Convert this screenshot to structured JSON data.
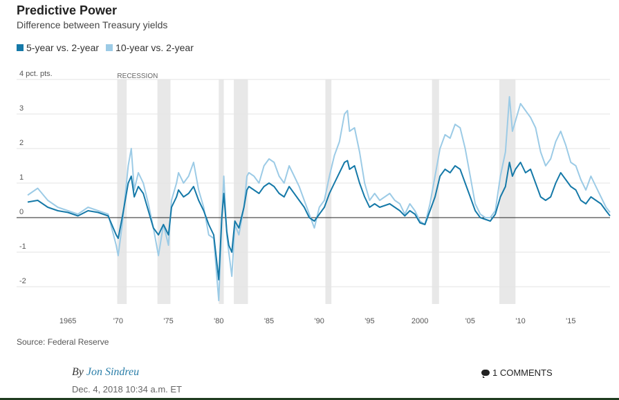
{
  "header": {
    "title": "Predictive Power",
    "subtitle": "Difference between Treasury yields"
  },
  "legend": [
    {
      "label": "5-year vs. 2-year",
      "color": "#1579a8"
    },
    {
      "label": "10-year vs. 2-year",
      "color": "#9ccbe6"
    }
  ],
  "footer": {
    "source": "Source: Federal Reserve",
    "by_prefix": "By",
    "author": "Jon Sindreu",
    "date": "Dec. 4, 2018 10:34 a.m. ET",
    "comments": "1 COMMENTS"
  },
  "chart_data": {
    "type": "line",
    "title": "Predictive Power",
    "subtitle": "Difference between Treasury yields",
    "ylabel": "pct. pts.",
    "xlim": [
      1961,
      2018.9
    ],
    "ylim": [
      -2.5,
      4
    ],
    "y_ticks": [
      {
        "value": 4,
        "label": "4 pct. pts."
      },
      {
        "value": 3,
        "label": "3"
      },
      {
        "value": 2,
        "label": "2"
      },
      {
        "value": 1,
        "label": "1"
      },
      {
        "value": 0,
        "label": "0"
      },
      {
        "value": -1,
        "label": "-1"
      },
      {
        "value": -2,
        "label": "-2"
      }
    ],
    "x_ticks": [
      {
        "value": 1965,
        "label": "1965"
      },
      {
        "value": 1970,
        "label": "'70"
      },
      {
        "value": 1975,
        "label": "'75"
      },
      {
        "value": 1980,
        "label": "'80"
      },
      {
        "value": 1985,
        "label": "'85"
      },
      {
        "value": 1990,
        "label": "'90"
      },
      {
        "value": 1995,
        "label": "'95"
      },
      {
        "value": 2000,
        "label": "2000"
      },
      {
        "value": 2005,
        "label": "'05"
      },
      {
        "value": 2010,
        "label": "'10"
      },
      {
        "value": 2015,
        "label": "'15"
      }
    ],
    "recession_label": "RECESSION",
    "recessions": [
      [
        1969.9,
        1970.85
      ],
      [
        1973.9,
        1975.2
      ],
      [
        1980.0,
        1980.5
      ],
      [
        1981.5,
        1982.9
      ],
      [
        1990.6,
        1991.2
      ],
      [
        2001.2,
        2001.9
      ],
      [
        2007.9,
        2009.5
      ]
    ],
    "series": [
      {
        "name": "10-year vs. 2-year",
        "color": "#9ccbe6",
        "points": [
          [
            1961.0,
            0.65
          ],
          [
            1962.0,
            0.85
          ],
          [
            1963.0,
            0.5
          ],
          [
            1964.0,
            0.3
          ],
          [
            1965.0,
            0.2
          ],
          [
            1966.0,
            0.1
          ],
          [
            1967.0,
            0.3
          ],
          [
            1968.0,
            0.2
          ],
          [
            1969.0,
            0.1
          ],
          [
            1969.8,
            -0.8
          ],
          [
            1970.0,
            -1.1
          ],
          [
            1970.4,
            -0.2
          ],
          [
            1971.0,
            1.5
          ],
          [
            1971.3,
            2.0
          ],
          [
            1971.6,
            0.8
          ],
          [
            1972.0,
            1.3
          ],
          [
            1972.5,
            1.0
          ],
          [
            1973.0,
            0.4
          ],
          [
            1973.5,
            -0.3
          ],
          [
            1974.0,
            -1.1
          ],
          [
            1974.5,
            -0.2
          ],
          [
            1975.0,
            -0.8
          ],
          [
            1975.3,
            0.5
          ],
          [
            1975.8,
            1.0
          ],
          [
            1976.0,
            1.3
          ],
          [
            1976.5,
            1.0
          ],
          [
            1977.0,
            1.2
          ],
          [
            1977.5,
            1.6
          ],
          [
            1978.0,
            0.8
          ],
          [
            1978.5,
            0.3
          ],
          [
            1979.0,
            -0.5
          ],
          [
            1979.5,
            -0.6
          ],
          [
            1980.0,
            -2.4
          ],
          [
            1980.3,
            0.0
          ],
          [
            1980.5,
            1.2
          ],
          [
            1980.8,
            -0.5
          ],
          [
            1981.0,
            -1.0
          ],
          [
            1981.3,
            -1.7
          ],
          [
            1981.6,
            -0.2
          ],
          [
            1982.0,
            -0.5
          ],
          [
            1982.5,
            0.3
          ],
          [
            1982.8,
            1.2
          ],
          [
            1983.0,
            1.3
          ],
          [
            1983.5,
            1.2
          ],
          [
            1984.0,
            1.0
          ],
          [
            1984.5,
            1.5
          ],
          [
            1985.0,
            1.7
          ],
          [
            1985.5,
            1.6
          ],
          [
            1986.0,
            1.2
          ],
          [
            1986.5,
            1.0
          ],
          [
            1987.0,
            1.5
          ],
          [
            1987.5,
            1.2
          ],
          [
            1988.0,
            0.9
          ],
          [
            1988.5,
            0.5
          ],
          [
            1989.0,
            0.1
          ],
          [
            1989.5,
            -0.3
          ],
          [
            1990.0,
            0.3
          ],
          [
            1990.5,
            0.5
          ],
          [
            1991.0,
            1.2
          ],
          [
            1991.5,
            1.8
          ],
          [
            1992.0,
            2.2
          ],
          [
            1992.5,
            3.0
          ],
          [
            1992.8,
            3.1
          ],
          [
            1993.0,
            2.5
          ],
          [
            1993.5,
            2.6
          ],
          [
            1994.0,
            1.9
          ],
          [
            1994.5,
            1.0
          ],
          [
            1995.0,
            0.5
          ],
          [
            1995.5,
            0.7
          ],
          [
            1996.0,
            0.5
          ],
          [
            1996.5,
            0.6
          ],
          [
            1997.0,
            0.7
          ],
          [
            1997.5,
            0.5
          ],
          [
            1998.0,
            0.4
          ],
          [
            1998.5,
            0.1
          ],
          [
            1999.0,
            0.4
          ],
          [
            1999.5,
            0.2
          ],
          [
            2000.0,
            -0.1
          ],
          [
            2000.5,
            -0.2
          ],
          [
            2001.0,
            0.4
          ],
          [
            2001.5,
            1.2
          ],
          [
            2002.0,
            2.0
          ],
          [
            2002.5,
            2.4
          ],
          [
            2003.0,
            2.3
          ],
          [
            2003.5,
            2.7
          ],
          [
            2004.0,
            2.6
          ],
          [
            2004.5,
            2.0
          ],
          [
            2005.0,
            1.2
          ],
          [
            2005.5,
            0.4
          ],
          [
            2006.0,
            0.1
          ],
          [
            2006.5,
            0.0
          ],
          [
            2007.0,
            0.0
          ],
          [
            2007.5,
            0.2
          ],
          [
            2008.0,
            1.2
          ],
          [
            2008.5,
            1.9
          ],
          [
            2008.9,
            3.5
          ],
          [
            2009.2,
            2.5
          ],
          [
            2009.5,
            2.8
          ],
          [
            2010.0,
            3.3
          ],
          [
            2010.5,
            3.1
          ],
          [
            2011.0,
            2.9
          ],
          [
            2011.5,
            2.6
          ],
          [
            2012.0,
            1.9
          ],
          [
            2012.5,
            1.5
          ],
          [
            2013.0,
            1.7
          ],
          [
            2013.5,
            2.2
          ],
          [
            2014.0,
            2.5
          ],
          [
            2014.5,
            2.1
          ],
          [
            2015.0,
            1.6
          ],
          [
            2015.5,
            1.5
          ],
          [
            2016.0,
            1.1
          ],
          [
            2016.5,
            0.8
          ],
          [
            2017.0,
            1.2
          ],
          [
            2017.5,
            0.9
          ],
          [
            2018.0,
            0.6
          ],
          [
            2018.5,
            0.3
          ],
          [
            2018.9,
            0.15
          ]
        ]
      },
      {
        "name": "5-year vs. 2-year",
        "color": "#1579a8",
        "points": [
          [
            1961.0,
            0.45
          ],
          [
            1962.0,
            0.5
          ],
          [
            1963.0,
            0.3
          ],
          [
            1964.0,
            0.2
          ],
          [
            1965.0,
            0.15
          ],
          [
            1966.0,
            0.05
          ],
          [
            1967.0,
            0.2
          ],
          [
            1968.0,
            0.15
          ],
          [
            1969.0,
            0.05
          ],
          [
            1969.8,
            -0.5
          ],
          [
            1970.0,
            -0.6
          ],
          [
            1970.4,
            0.0
          ],
          [
            1971.0,
            1.0
          ],
          [
            1971.3,
            1.2
          ],
          [
            1971.6,
            0.6
          ],
          [
            1972.0,
            0.9
          ],
          [
            1972.5,
            0.7
          ],
          [
            1973.0,
            0.2
          ],
          [
            1973.5,
            -0.3
          ],
          [
            1974.0,
            -0.5
          ],
          [
            1974.5,
            -0.2
          ],
          [
            1975.0,
            -0.5
          ],
          [
            1975.3,
            0.3
          ],
          [
            1975.8,
            0.6
          ],
          [
            1976.0,
            0.8
          ],
          [
            1976.5,
            0.6
          ],
          [
            1977.0,
            0.7
          ],
          [
            1977.5,
            0.9
          ],
          [
            1978.0,
            0.5
          ],
          [
            1978.5,
            0.2
          ],
          [
            1979.0,
            -0.2
          ],
          [
            1979.5,
            -0.5
          ],
          [
            1980.0,
            -1.8
          ],
          [
            1980.3,
            0.0
          ],
          [
            1980.5,
            0.7
          ],
          [
            1980.8,
            -0.4
          ],
          [
            1981.0,
            -0.8
          ],
          [
            1981.3,
            -1.0
          ],
          [
            1981.6,
            -0.1
          ],
          [
            1982.0,
            -0.3
          ],
          [
            1982.5,
            0.3
          ],
          [
            1982.8,
            0.8
          ],
          [
            1983.0,
            0.9
          ],
          [
            1983.5,
            0.8
          ],
          [
            1984.0,
            0.7
          ],
          [
            1984.5,
            0.9
          ],
          [
            1985.0,
            1.0
          ],
          [
            1985.5,
            0.9
          ],
          [
            1986.0,
            0.7
          ],
          [
            1986.5,
            0.6
          ],
          [
            1987.0,
            0.9
          ],
          [
            1987.5,
            0.7
          ],
          [
            1988.0,
            0.5
          ],
          [
            1988.5,
            0.3
          ],
          [
            1989.0,
            0.0
          ],
          [
            1989.5,
            -0.1
          ],
          [
            1990.0,
            0.1
          ],
          [
            1990.5,
            0.3
          ],
          [
            1991.0,
            0.7
          ],
          [
            1991.5,
            1.0
          ],
          [
            1992.0,
            1.3
          ],
          [
            1992.5,
            1.6
          ],
          [
            1992.8,
            1.65
          ],
          [
            1993.0,
            1.4
          ],
          [
            1993.5,
            1.5
          ],
          [
            1994.0,
            1.0
          ],
          [
            1994.5,
            0.6
          ],
          [
            1995.0,
            0.3
          ],
          [
            1995.5,
            0.4
          ],
          [
            1996.0,
            0.3
          ],
          [
            1996.5,
            0.35
          ],
          [
            1997.0,
            0.4
          ],
          [
            1997.5,
            0.3
          ],
          [
            1998.0,
            0.2
          ],
          [
            1998.5,
            0.05
          ],
          [
            1999.0,
            0.2
          ],
          [
            1999.5,
            0.1
          ],
          [
            2000.0,
            -0.15
          ],
          [
            2000.5,
            -0.2
          ],
          [
            2001.0,
            0.2
          ],
          [
            2001.5,
            0.6
          ],
          [
            2002.0,
            1.2
          ],
          [
            2002.5,
            1.4
          ],
          [
            2003.0,
            1.3
          ],
          [
            2003.5,
            1.5
          ],
          [
            2004.0,
            1.4
          ],
          [
            2004.5,
            1.0
          ],
          [
            2005.0,
            0.6
          ],
          [
            2005.5,
            0.2
          ],
          [
            2006.0,
            0.0
          ],
          [
            2006.5,
            -0.05
          ],
          [
            2007.0,
            -0.1
          ],
          [
            2007.5,
            0.1
          ],
          [
            2008.0,
            0.6
          ],
          [
            2008.5,
            0.9
          ],
          [
            2008.9,
            1.6
          ],
          [
            2009.2,
            1.2
          ],
          [
            2009.5,
            1.4
          ],
          [
            2010.0,
            1.6
          ],
          [
            2010.5,
            1.3
          ],
          [
            2011.0,
            1.4
          ],
          [
            2011.5,
            1.0
          ],
          [
            2012.0,
            0.6
          ],
          [
            2012.5,
            0.5
          ],
          [
            2013.0,
            0.6
          ],
          [
            2013.5,
            1.0
          ],
          [
            2014.0,
            1.3
          ],
          [
            2014.5,
            1.1
          ],
          [
            2015.0,
            0.9
          ],
          [
            2015.5,
            0.8
          ],
          [
            2016.0,
            0.5
          ],
          [
            2016.5,
            0.4
          ],
          [
            2017.0,
            0.6
          ],
          [
            2017.5,
            0.5
          ],
          [
            2018.0,
            0.4
          ],
          [
            2018.5,
            0.2
          ],
          [
            2018.9,
            0.05
          ]
        ]
      }
    ]
  }
}
